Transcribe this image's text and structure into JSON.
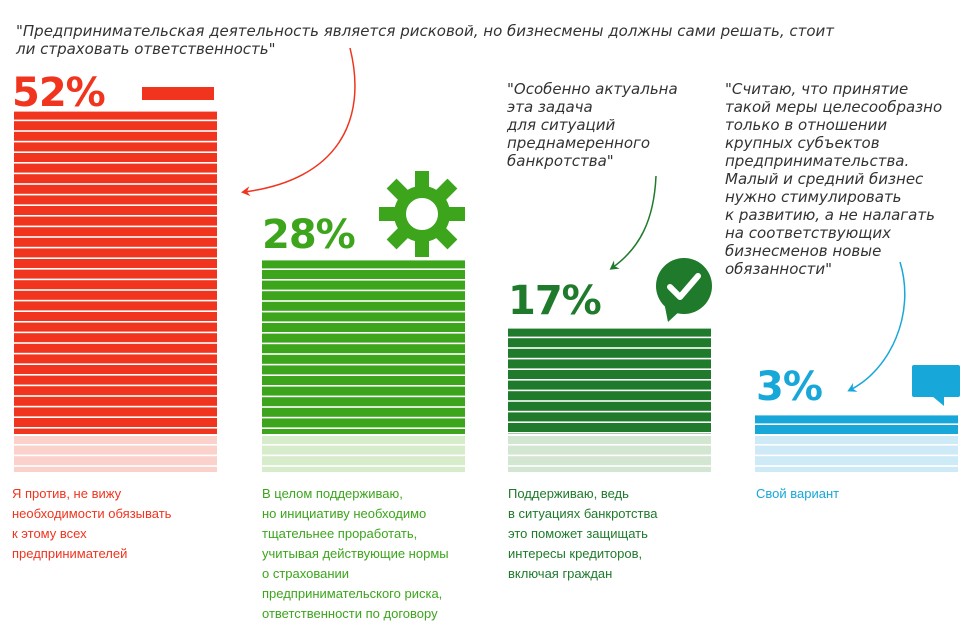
{
  "chart_data": {
    "type": "bar",
    "categories": [
      "Я против, не вижу необходимости обязывать к этому всех предпринимателей",
      "В целом поддерживаю, но инициативу необходимо тщательнее проработать, учитывая действующие нормы о страховании предпринимательского риска, ответственности по договору",
      "Поддерживаю, ведь в ситуациях банкротства это поможет защищать интересы кредиторов, включая граждан",
      "Свой вариант"
    ],
    "values": [
      52,
      28,
      17,
      3
    ],
    "ylim": [
      0,
      100
    ],
    "title": "",
    "xlabel": "",
    "ylabel": "",
    "value_labels": [
      "52%",
      "28%",
      "17%",
      "3%"
    ]
  },
  "colors": {
    "red": "#f0341e",
    "red_light": "#fbd2cb",
    "green": "#3ca51c",
    "green_light": "#d6ecca",
    "darkgreen": "#1f7a2c",
    "darkgreen_light": "#d2e6d2",
    "blue": "#17a7d8",
    "blue_light": "#cdeaf6"
  },
  "quotes": {
    "red": "\"Предпринимательская деятельность является рисковой, но бизнесмены должны сами решать, стоит\nли страховать ответственность\"",
    "darkgreen": "\"Особенно актуальна\nэта задача\nдля ситуаций\nпреднамеренного\nбанкротства\"",
    "blue": "\"Считаю, что принятие\nтакой меры целесообразно\nтолько в отношении\nкрупных субъектов\nпредпринимательства.\nМалый и средний бизнес\nнужно стимулировать\nк развитию, а не налагать\nна соответствующих\nбизнесменов новые\nобязанности\""
  },
  "labels": [
    "Я против, не вижу\nнеобходимости обязывать\nк этому всех\nпредпринимателей",
    "В целом поддерживаю,\nно инициативу необходимо\nтщательнее проработать,\nучитывая действующие нормы\nо страховании\nпредпринимательского риска,\nответственности по договору",
    "Поддерживаю, ведь\nв ситуациях банкротства\nэто поможет защищать\nинтересы кредиторов,\nвключая граждан",
    "Свой вариант"
  ],
  "icons": [
    "gear-icon",
    "checkmark-badge-icon",
    "speech-bubble-icon"
  ]
}
